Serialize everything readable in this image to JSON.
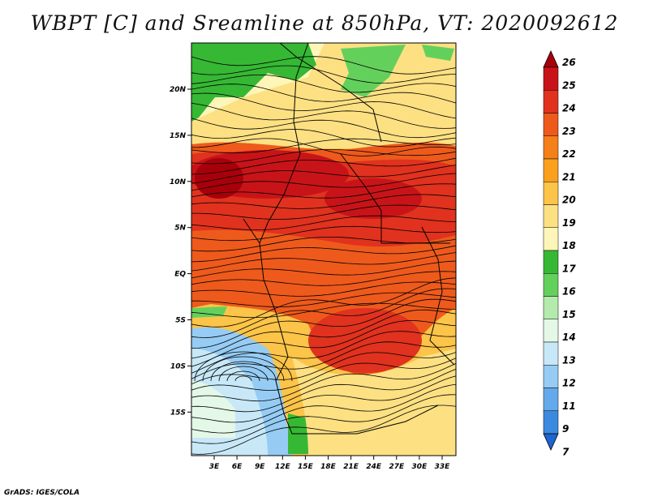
{
  "title": "WBPT [C] and Sreamline at 850hPa, VT: 2020092612",
  "credit": "GrADS: IGES/COLA",
  "map": {
    "lat_labels": [
      "20N",
      "15N",
      "10N",
      "5N",
      "EQ",
      "5S",
      "10S",
      "15S"
    ],
    "lon_labels": [
      "3E",
      "6E",
      "9E",
      "12E",
      "15E",
      "18E",
      "21E",
      "24E",
      "27E",
      "30E",
      "33E"
    ]
  },
  "colorbar": {
    "levels": [
      "26",
      "25",
      "24",
      "23",
      "22",
      "21",
      "20",
      "19",
      "18",
      "17",
      "16",
      "15",
      "14",
      "13",
      "12",
      "11",
      "9",
      "7"
    ],
    "colors_top_to_bottom": [
      "#a8000a",
      "#c81418",
      "#e0321e",
      "#ee5a1c",
      "#f57f18",
      "#fba01c",
      "#fcc448",
      "#fde082",
      "#fef6b8",
      "#36b834",
      "#64d05c",
      "#b4ebac",
      "#e4f8e8",
      "#c8e8f8",
      "#96ccf4",
      "#64aaeb",
      "#3c8ae0",
      "#1e64d2"
    ]
  }
}
